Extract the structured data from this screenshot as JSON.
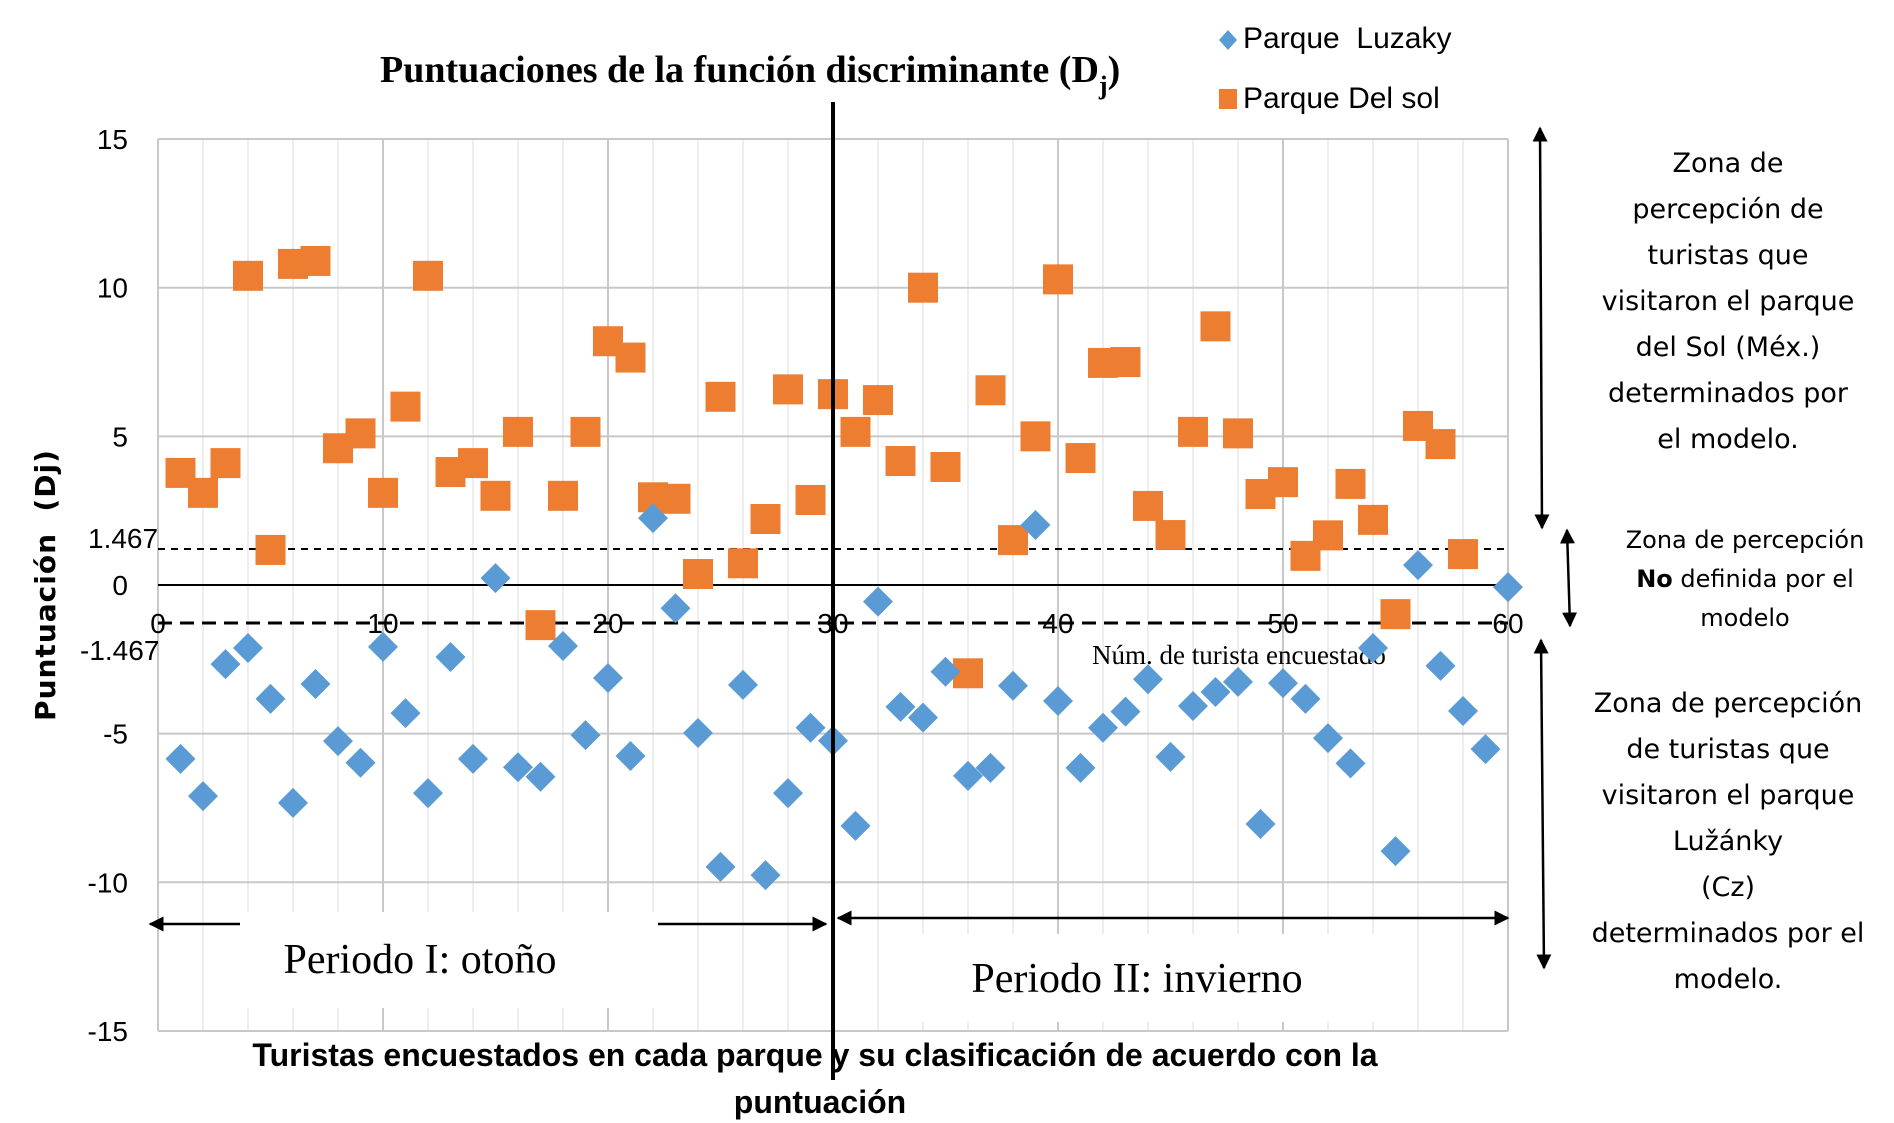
{
  "chart_data": {
    "type": "scatter",
    "title": "Puntuaciones de la función discriminante (D",
    "title_subscript": "j",
    "title_close": ")",
    "xlabel": "Turistas encuestados en cada parque y su clasificación de acuerdo con la",
    "xlabel_line2": "puntuación",
    "xlabel_inner": "Núm. de turista encuestado",
    "ylabel": "Puntuación  (Dj)",
    "xlim": [
      0,
      60
    ],
    "ylim": [
      -15,
      15
    ],
    "x_ticks": [
      0,
      10,
      20,
      30,
      40,
      50,
      60
    ],
    "y_ticks": [
      -15,
      -10,
      -5,
      0,
      5,
      10,
      15
    ],
    "grid": true,
    "legend_position": "top-right",
    "thresholds": [
      {
        "value": 1.467,
        "label": "1.467",
        "style": "dashed"
      },
      {
        "value": -1.467,
        "label": "-1.467",
        "style": "dashed"
      }
    ],
    "period_divider_x": 30,
    "series": [
      {
        "name": "Parque  Luzaky",
        "marker": "diamond",
        "color": "#5B9BD5",
        "x": [
          1,
          2,
          3,
          4,
          5,
          6,
          7,
          8,
          9,
          10,
          11,
          12,
          13,
          14,
          15,
          16,
          17,
          18,
          19,
          20,
          21,
          22,
          23,
          24,
          25,
          26,
          27,
          28,
          29,
          30,
          31,
          32,
          33,
          34,
          35,
          36,
          37,
          38,
          39,
          40,
          41,
          42,
          43,
          44,
          45,
          46,
          47,
          48,
          49,
          50,
          51,
          52,
          53,
          54,
          55,
          56,
          57,
          58,
          59,
          60
        ],
        "y": [
          -5.85,
          -7.1,
          -2.66,
          -2.12,
          -3.83,
          -7.33,
          -3.33,
          -5.25,
          -5.98,
          -2.08,
          -4.31,
          -7.0,
          -2.42,
          -5.85,
          0.23,
          -6.13,
          -6.45,
          -2.05,
          -5.05,
          -3.13,
          -5.75,
          2.25,
          -0.78,
          -4.98,
          -9.48,
          -3.36,
          -9.76,
          -7.0,
          -4.8,
          -5.24,
          -8.1,
          -0.56,
          -4.1,
          -4.46,
          -2.92,
          -6.42,
          -6.15,
          -3.39,
          2.02,
          -3.9,
          -6.15,
          -4.8,
          -4.26,
          -3.17,
          -5.78,
          -4.07,
          -3.6,
          -3.26,
          -8.04,
          -3.3,
          -3.83,
          -5.15,
          -6.0,
          -2.12,
          -8.95,
          0.67,
          -2.72,
          -4.24,
          -5.52,
          -0.07
        ]
      },
      {
        "name": "Parque Del sol",
        "marker": "square",
        "color": "#ED7D31",
        "x": [
          1,
          2,
          3,
          4,
          5,
          6,
          7,
          8,
          9,
          10,
          11,
          12,
          13,
          14,
          15,
          16,
          17,
          18,
          19,
          20,
          21,
          22,
          23,
          24,
          25,
          26,
          27,
          28,
          29,
          30,
          31,
          32,
          33,
          34,
          35,
          36,
          37,
          38,
          39,
          40,
          41,
          42,
          43,
          44,
          45,
          46,
          47,
          48,
          49,
          50,
          51,
          52,
          53,
          54,
          55,
          56,
          57,
          58
        ],
        "y": [
          3.77,
          3.1,
          4.1,
          10.4,
          1.18,
          10.8,
          10.9,
          4.6,
          5.1,
          3.1,
          6.0,
          10.4,
          3.8,
          4.1,
          3.0,
          5.15,
          -1.35,
          3.0,
          5.15,
          8.2,
          7.65,
          2.95,
          2.9,
          0.37,
          6.33,
          0.73,
          2.22,
          6.58,
          2.86,
          6.42,
          5.15,
          6.22,
          4.17,
          10.0,
          3.97,
          -2.97,
          6.55,
          1.51,
          5.0,
          10.28,
          4.27,
          7.47,
          7.5,
          2.66,
          1.68,
          5.15,
          8.7,
          5.1,
          3.06,
          3.46,
          0.98,
          1.67,
          3.4,
          2.19,
          -0.98,
          5.35,
          4.74,
          1.04
        ]
      }
    ],
    "annotations": {
      "period_1": "Periodo I: otoño",
      "period_2": "Periodo II: invierno",
      "zone_sol": [
        "Zona de",
        "percepción de",
        "turistas que",
        "visitaron el parque",
        "del Sol (Méx.)",
        "determinados por",
        "el modelo."
      ],
      "zone_undefined": {
        "line1": "Zona de percepción",
        "line2_bold": "No",
        "line2_rest": " definida por el",
        "line3": "modelo"
      },
      "zone_luzanky": [
        "Zona de percepción",
        "de turistas que",
        "visitaron el parque",
        "Lužánky",
        "(Cz)",
        "determinados por el",
        "modelo."
      ]
    }
  }
}
